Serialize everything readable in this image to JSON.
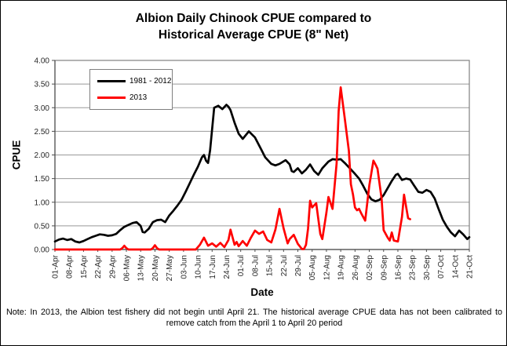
{
  "title": {
    "line1": "Albion Daily Chinook CPUE compared to",
    "line2": "Historical Average CPUE (8\" Net)"
  },
  "note": "Note: In 2013, the Albion test fishery did not begin until April 21. The historical average CPUE data has not been calibrated to remove catch from the April 1 to April 20 period",
  "chart_data": {
    "type": "line",
    "title": "Albion Daily Chinook CPUE compared to Historical Average CPUE (8\" Net)",
    "xlabel": "Date",
    "ylabel": "CPUE",
    "ylim": [
      0,
      4
    ],
    "y_tick_labels": [
      "0.00",
      "0.50",
      "1.00",
      "1.50",
      "2.00",
      "2.50",
      "3.00",
      "3.50",
      "4.00"
    ],
    "x_tick_labels": [
      "01-Apr",
      "08-Apr",
      "15-Apr",
      "22-Apr",
      "29-Apr",
      "06-May",
      "13-May",
      "20-May",
      "27-May",
      "03-Jun",
      "10-Jun",
      "17-Jun",
      "24-Jun",
      "01-Jul",
      "08-Jul",
      "15-Jul",
      "22-Jul",
      "29-Jul",
      "05-Aug",
      "12-Aug",
      "19-Aug",
      "26-Aug",
      "02-Sep",
      "09-Sep",
      "16-Sep",
      "23-Sep",
      "30-Sep",
      "07-Oct",
      "14-Oct",
      "21-Oct"
    ],
    "x_tick_interval_days": 7,
    "x_max_day": 203,
    "x_unit": "days since 01-Apr",
    "grid": "horizontal",
    "legend_position": "upper-left-inside",
    "colors": {
      "grid": "#999999",
      "plot_border": "#808080",
      "axis": "#4d4d4d",
      "tick_text": "#262626"
    },
    "series": [
      {
        "name": "1981 - 2012",
        "color": "#000000",
        "points": [
          [
            0,
            0.17
          ],
          [
            2,
            0.21
          ],
          [
            4,
            0.23
          ],
          [
            6,
            0.2
          ],
          [
            8,
            0.22
          ],
          [
            10,
            0.17
          ],
          [
            12,
            0.15
          ],
          [
            14,
            0.18
          ],
          [
            16,
            0.22
          ],
          [
            18,
            0.26
          ],
          [
            20,
            0.29
          ],
          [
            22,
            0.32
          ],
          [
            24,
            0.31
          ],
          [
            26,
            0.29
          ],
          [
            28,
            0.3
          ],
          [
            30,
            0.33
          ],
          [
            32,
            0.41
          ],
          [
            34,
            0.48
          ],
          [
            36,
            0.52
          ],
          [
            38,
            0.56
          ],
          [
            40,
            0.58
          ],
          [
            42,
            0.5
          ],
          [
            43,
            0.37
          ],
          [
            44,
            0.36
          ],
          [
            46,
            0.44
          ],
          [
            48,
            0.58
          ],
          [
            50,
            0.62
          ],
          [
            52,
            0.63
          ],
          [
            54,
            0.58
          ],
          [
            56,
            0.72
          ],
          [
            58,
            0.82
          ],
          [
            60,
            0.93
          ],
          [
            62,
            1.05
          ],
          [
            64,
            1.22
          ],
          [
            66,
            1.4
          ],
          [
            68,
            1.58
          ],
          [
            70,
            1.75
          ],
          [
            72,
            1.95
          ],
          [
            73,
            2.0
          ],
          [
            74,
            1.88
          ],
          [
            75,
            1.83
          ],
          [
            76,
            2.1
          ],
          [
            77,
            2.55
          ],
          [
            78,
            3.0
          ],
          [
            80,
            3.04
          ],
          [
            82,
            2.97
          ],
          [
            84,
            3.06
          ],
          [
            85,
            3.02
          ],
          [
            86,
            2.95
          ],
          [
            88,
            2.68
          ],
          [
            90,
            2.45
          ],
          [
            92,
            2.34
          ],
          [
            95,
            2.5
          ],
          [
            98,
            2.37
          ],
          [
            101,
            2.12
          ],
          [
            103,
            1.95
          ],
          [
            106,
            1.81
          ],
          [
            108,
            1.78
          ],
          [
            110,
            1.81
          ],
          [
            113,
            1.89
          ],
          [
            115,
            1.8
          ],
          [
            116,
            1.66
          ],
          [
            117,
            1.64
          ],
          [
            119,
            1.72
          ],
          [
            121,
            1.61
          ],
          [
            123,
            1.69
          ],
          [
            125,
            1.8
          ],
          [
            127,
            1.66
          ],
          [
            129,
            1.58
          ],
          [
            131,
            1.72
          ],
          [
            134,
            1.86
          ],
          [
            136,
            1.91
          ],
          [
            138,
            1.9
          ],
          [
            140,
            1.91
          ],
          [
            142,
            1.83
          ],
          [
            144,
            1.74
          ],
          [
            147,
            1.6
          ],
          [
            149,
            1.5
          ],
          [
            151,
            1.35
          ],
          [
            153,
            1.18
          ],
          [
            155,
            1.06
          ],
          [
            157,
            1.02
          ],
          [
            159,
            1.05
          ],
          [
            161,
            1.15
          ],
          [
            163,
            1.3
          ],
          [
            165,
            1.45
          ],
          [
            167,
            1.58
          ],
          [
            168,
            1.6
          ],
          [
            170,
            1.47
          ],
          [
            172,
            1.5
          ],
          [
            174,
            1.48
          ],
          [
            176,
            1.35
          ],
          [
            178,
            1.22
          ],
          [
            180,
            1.2
          ],
          [
            182,
            1.26
          ],
          [
            184,
            1.22
          ],
          [
            186,
            1.08
          ],
          [
            188,
            0.85
          ],
          [
            190,
            0.63
          ],
          [
            192,
            0.48
          ],
          [
            194,
            0.36
          ],
          [
            196,
            0.28
          ],
          [
            198,
            0.4
          ],
          [
            200,
            0.32
          ],
          [
            202,
            0.22
          ],
          [
            203,
            0.26
          ]
        ]
      },
      {
        "name": "2013",
        "color": "#ff0000",
        "points": [
          [
            0,
            0
          ],
          [
            32,
            0
          ],
          [
            33,
            0.03
          ],
          [
            34,
            0.08
          ],
          [
            35,
            0.03
          ],
          [
            36,
            0
          ],
          [
            47,
            0
          ],
          [
            48,
            0.03
          ],
          [
            49,
            0.09
          ],
          [
            50,
            0.03
          ],
          [
            51,
            0
          ],
          [
            69,
            0
          ],
          [
            71,
            0.1
          ],
          [
            73,
            0.25
          ],
          [
            75,
            0.08
          ],
          [
            77,
            0.13
          ],
          [
            79,
            0.06
          ],
          [
            81,
            0.14
          ],
          [
            83,
            0.05
          ],
          [
            85,
            0.2
          ],
          [
            86,
            0.42
          ],
          [
            88,
            0.1
          ],
          [
            89,
            0.16
          ],
          [
            90,
            0.07
          ],
          [
            92,
            0.18
          ],
          [
            94,
            0.08
          ],
          [
            96,
            0.25
          ],
          [
            98,
            0.4
          ],
          [
            100,
            0.33
          ],
          [
            102,
            0.38
          ],
          [
            104,
            0.2
          ],
          [
            106,
            0.15
          ],
          [
            108,
            0.42
          ],
          [
            110,
            0.86
          ],
          [
            112,
            0.45
          ],
          [
            114,
            0.13
          ],
          [
            115,
            0.22
          ],
          [
            117,
            0.31
          ],
          [
            119,
            0.12
          ],
          [
            121,
            0.01
          ],
          [
            122,
            0.01
          ],
          [
            123,
            0.1
          ],
          [
            124,
            0.44
          ],
          [
            125,
            1.03
          ],
          [
            126,
            0.89
          ],
          [
            128,
            0.98
          ],
          [
            130,
            0.33
          ],
          [
            131,
            0.22
          ],
          [
            133,
            0.78
          ],
          [
            134,
            1.11
          ],
          [
            136,
            0.86
          ],
          [
            138,
            1.82
          ],
          [
            139,
            2.93
          ],
          [
            140,
            3.43
          ],
          [
            142,
            2.77
          ],
          [
            144,
            2.09
          ],
          [
            145,
            1.38
          ],
          [
            146,
            1.17
          ],
          [
            147,
            0.89
          ],
          [
            148,
            0.83
          ],
          [
            149,
            0.86
          ],
          [
            150,
            0.77
          ],
          [
            152,
            0.61
          ],
          [
            154,
            1.36
          ],
          [
            156,
            1.88
          ],
          [
            157,
            1.8
          ],
          [
            158,
            1.71
          ],
          [
            160,
            1.08
          ],
          [
            161,
            0.41
          ],
          [
            163,
            0.25
          ],
          [
            164,
            0.19
          ],
          [
            165,
            0.36
          ],
          [
            166,
            0.19
          ],
          [
            168,
            0.17
          ],
          [
            170,
            0.69
          ],
          [
            171,
            1.16
          ],
          [
            173,
            0.66
          ],
          [
            174,
            0.64
          ]
        ]
      }
    ]
  }
}
